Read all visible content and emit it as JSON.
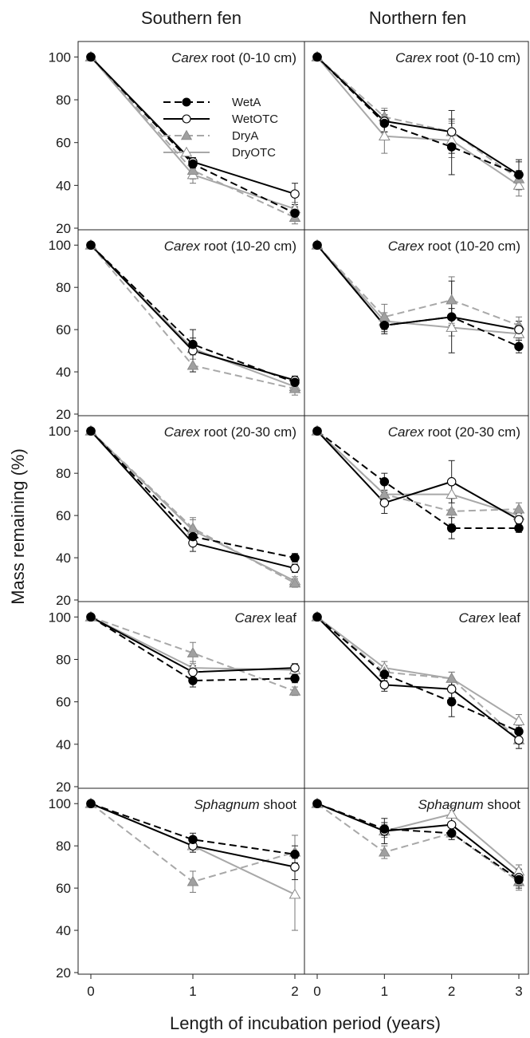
{
  "figure": {
    "column_titles": [
      "Southern fen",
      "Northern fen"
    ],
    "y_axis_label": "Mass remaining (%)",
    "x_axis_label": "Length of incubation period (years)",
    "legend": [
      {
        "name": "WetA",
        "color": "#000000",
        "dash": true,
        "marker": "circle",
        "fill": "#000000"
      },
      {
        "name": "WetOTC",
        "color": "#000000",
        "dash": false,
        "marker": "circle",
        "fill": "#ffffff"
      },
      {
        "name": "DryA",
        "color": "#a8a8a8",
        "dash": true,
        "marker": "triangle",
        "fill": "#a0a0a0"
      },
      {
        "name": "DryOTC",
        "color": "#a8a8a8",
        "dash": false,
        "marker": "triangle",
        "fill": "#ffffff"
      }
    ],
    "y_ticks": [
      20,
      40,
      60,
      80,
      100
    ],
    "ylim": [
      20,
      105
    ]
  },
  "chart_data": [
    {
      "type": "line",
      "panel": "southern-0-10",
      "title_italic": "Carex",
      "title_rest": " root (0-10 cm)",
      "x": [
        0,
        1,
        2
      ],
      "xlim": [
        0,
        2
      ],
      "series": [
        {
          "name": "WetA",
          "values": [
            100,
            50,
            27
          ],
          "err": [
            0,
            2,
            3
          ]
        },
        {
          "name": "WetOTC",
          "values": [
            100,
            51,
            36
          ],
          "err": [
            0,
            2,
            5
          ]
        },
        {
          "name": "DryA",
          "values": [
            100,
            47,
            25
          ],
          "err": [
            0,
            4,
            3
          ]
        },
        {
          "name": "DryOTC",
          "values": [
            100,
            45,
            29
          ],
          "err": [
            0,
            4,
            3
          ]
        }
      ]
    },
    {
      "type": "line",
      "panel": "northern-0-10",
      "title_italic": "Carex",
      "title_rest": " root (0-10 cm)",
      "x": [
        0,
        1,
        2,
        3
      ],
      "xlim": [
        0,
        3
      ],
      "series": [
        {
          "name": "WetA",
          "values": [
            100,
            69,
            58,
            45
          ],
          "err": [
            0,
            4,
            13,
            6
          ]
        },
        {
          "name": "WetOTC",
          "values": [
            100,
            70,
            65,
            45
          ],
          "err": [
            0,
            5,
            10,
            7
          ]
        },
        {
          "name": "DryA",
          "values": [
            100,
            72,
            65,
            43
          ],
          "err": [
            0,
            4,
            5,
            4
          ]
        },
        {
          "name": "DryOTC",
          "values": [
            100,
            63,
            61,
            40
          ],
          "err": [
            0,
            8,
            8,
            5
          ]
        }
      ]
    },
    {
      "type": "line",
      "panel": "southern-10-20",
      "title_italic": "Carex",
      "title_rest": " root (10-20 cm)",
      "x": [
        0,
        1,
        2
      ],
      "xlim": [
        0,
        2
      ],
      "series": [
        {
          "name": "WetA",
          "values": [
            100,
            53,
            35
          ],
          "err": [
            0,
            3,
            2
          ]
        },
        {
          "name": "WetOTC",
          "values": [
            100,
            50,
            36
          ],
          "err": [
            0,
            10,
            2
          ]
        },
        {
          "name": "DryA",
          "values": [
            100,
            43,
            32
          ],
          "err": [
            0,
            3,
            3
          ]
        },
        {
          "name": "DryOTC",
          "values": [
            100,
            51,
            33
          ],
          "err": [
            0,
            3,
            2
          ]
        }
      ]
    },
    {
      "type": "line",
      "panel": "northern-10-20",
      "title_italic": "Carex",
      "title_rest": " root (10-20 cm)",
      "x": [
        0,
        1,
        2,
        3
      ],
      "xlim": [
        0,
        3
      ],
      "series": [
        {
          "name": "WetA",
          "values": [
            100,
            62,
            66,
            52
          ],
          "err": [
            0,
            4,
            17,
            3
          ]
        },
        {
          "name": "WetOTC",
          "values": [
            100,
            62,
            66,
            60
          ],
          "err": [
            0,
            3,
            4,
            4
          ]
        },
        {
          "name": "DryA",
          "values": [
            100,
            66,
            74,
            62
          ],
          "err": [
            0,
            6,
            11,
            4
          ]
        },
        {
          "name": "DryOTC",
          "values": [
            100,
            64,
            61,
            58
          ],
          "err": [
            0,
            4,
            4,
            3
          ]
        }
      ]
    },
    {
      "type": "line",
      "panel": "southern-20-30",
      "title_italic": "Carex",
      "title_rest": " root (20-30 cm)",
      "x": [
        0,
        1,
        2
      ],
      "xlim": [
        0,
        2
      ],
      "series": [
        {
          "name": "WetA",
          "values": [
            100,
            50,
            40
          ],
          "err": [
            0,
            3,
            2
          ]
        },
        {
          "name": "WetOTC",
          "values": [
            100,
            47,
            35
          ],
          "err": [
            0,
            4,
            2
          ]
        },
        {
          "name": "DryA",
          "values": [
            100,
            54,
            28
          ],
          "err": [
            0,
            5,
            2
          ]
        },
        {
          "name": "DryOTC",
          "values": [
            100,
            53,
            29
          ],
          "err": [
            0,
            5,
            2
          ]
        }
      ]
    },
    {
      "type": "line",
      "panel": "northern-20-30",
      "title_italic": "Carex",
      "title_rest": " root (20-30 cm)",
      "x": [
        0,
        1,
        2,
        3
      ],
      "xlim": [
        0,
        3
      ],
      "series": [
        {
          "name": "WetA",
          "values": [
            100,
            76,
            54,
            54
          ],
          "err": [
            0,
            4,
            5,
            2
          ]
        },
        {
          "name": "WetOTC",
          "values": [
            100,
            66,
            76,
            58
          ],
          "err": [
            0,
            5,
            10,
            3
          ]
        },
        {
          "name": "DryA",
          "values": [
            100,
            70,
            62,
            63
          ],
          "err": [
            0,
            5,
            6,
            3
          ]
        },
        {
          "name": "DryOTC",
          "values": [
            100,
            70,
            70,
            60
          ],
          "err": [
            0,
            5,
            7,
            3
          ]
        }
      ]
    },
    {
      "type": "line",
      "panel": "southern-leaf",
      "title_italic": "Carex",
      "title_rest": " leaf",
      "x": [
        0,
        1,
        2
      ],
      "xlim": [
        0,
        2
      ],
      "series": [
        {
          "name": "WetA",
          "values": [
            100,
            70,
            71
          ],
          "err": [
            0,
            3,
            2
          ]
        },
        {
          "name": "WetOTC",
          "values": [
            100,
            74,
            76
          ],
          "err": [
            0,
            3,
            2
          ]
        },
        {
          "name": "DryA",
          "values": [
            100,
            83,
            65
          ],
          "err": [
            0,
            5,
            2
          ]
        },
        {
          "name": "DryOTC",
          "values": [
            100,
            76,
            75
          ],
          "err": [
            0,
            3,
            2
          ]
        }
      ]
    },
    {
      "type": "line",
      "panel": "northern-leaf",
      "title_italic": "Carex",
      "title_rest": " leaf",
      "x": [
        0,
        1,
        2,
        3
      ],
      "xlim": [
        0,
        3
      ],
      "series": [
        {
          "name": "WetA",
          "values": [
            100,
            73,
            60,
            46
          ],
          "err": [
            0,
            3,
            7,
            3
          ]
        },
        {
          "name": "WetOTC",
          "values": [
            100,
            68,
            66,
            42
          ],
          "err": [
            0,
            3,
            4,
            4
          ]
        },
        {
          "name": "DryA",
          "values": [
            100,
            74,
            71,
            42
          ],
          "err": [
            0,
            3,
            3,
            4
          ]
        },
        {
          "name": "DryOTC",
          "values": [
            100,
            76,
            71,
            51
          ],
          "err": [
            0,
            3,
            3,
            3
          ]
        }
      ]
    },
    {
      "type": "line",
      "panel": "southern-sphagnum",
      "title_italic": "Sphagnum",
      "title_rest": " shoot",
      "x": [
        0,
        1,
        2
      ],
      "xlim": [
        0,
        2
      ],
      "series": [
        {
          "name": "WetA",
          "values": [
            100,
            83,
            76
          ],
          "err": [
            0,
            3,
            4
          ]
        },
        {
          "name": "WetOTC",
          "values": [
            100,
            80,
            70
          ],
          "err": [
            0,
            3,
            6
          ]
        },
        {
          "name": "DryA",
          "values": [
            100,
            63,
            77
          ],
          "err": [
            0,
            5,
            8
          ]
        },
        {
          "name": "DryOTC",
          "values": [
            100,
            80,
            57
          ],
          "err": [
            0,
            3,
            17
          ]
        }
      ]
    },
    {
      "type": "line",
      "panel": "northern-sphagnum",
      "title_italic": "Sphagnum",
      "title_rest": " shoot",
      "x": [
        0,
        1,
        2,
        3
      ],
      "xlim": [
        0,
        3
      ],
      "series": [
        {
          "name": "WetA",
          "values": [
            100,
            88,
            86,
            64
          ],
          "err": [
            0,
            3,
            3,
            4
          ]
        },
        {
          "name": "WetOTC",
          "values": [
            100,
            87,
            90,
            65
          ],
          "err": [
            0,
            6,
            4,
            4
          ]
        },
        {
          "name": "DryA",
          "values": [
            100,
            77,
            86,
            63
          ],
          "err": [
            0,
            3,
            3,
            4
          ]
        },
        {
          "name": "DryOTC",
          "values": [
            100,
            87,
            95,
            68
          ],
          "err": [
            0,
            3,
            4,
            3
          ]
        }
      ]
    }
  ]
}
